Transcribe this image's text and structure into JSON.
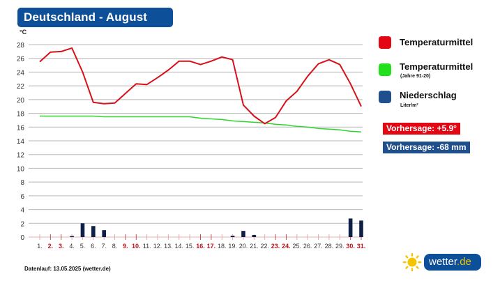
{
  "header": {
    "title": "Deutschland - August"
  },
  "axis": {
    "y_unit": "°C"
  },
  "legend": {
    "items": [
      {
        "label": "Temperaturmittel",
        "sub": "",
        "color": "#e30613"
      },
      {
        "label": "Temperaturmittel",
        "sub": "(Jahre 91-20)",
        "color": "#22e01e"
      },
      {
        "label": "Niederschlag",
        "sub": "Liter/m²",
        "color": "#1f4f8c"
      }
    ]
  },
  "forecast": {
    "temperature": {
      "label": "Vorhersage: +5.9°",
      "color": "#e30613"
    },
    "precipitation": {
      "label": "Vorhersage: -68 mm",
      "color": "#1f4f8c"
    }
  },
  "footer": {
    "text": "Datenlauf: 13.05.2025 (wetter.de)"
  },
  "logo": {
    "main": "wetter",
    "tld": ".de"
  },
  "chart_data": {
    "type": "line",
    "title": "Deutschland - August",
    "xlabel": "",
    "ylabel": "°C",
    "ylim": [
      0,
      28
    ],
    "yticks": [
      0,
      2,
      4,
      6,
      8,
      10,
      12,
      14,
      16,
      18,
      20,
      22,
      24,
      26,
      28
    ],
    "grid": true,
    "legend_position": "right",
    "categories": [
      "1.",
      "2.",
      "3.",
      "4.",
      "5.",
      "6.",
      "7.",
      "8.",
      "9.",
      "10.",
      "11.",
      "12.",
      "13.",
      "14.",
      "15.",
      "16.",
      "17.",
      "18.",
      "19.",
      "20.",
      "21.",
      "22.",
      "23.",
      "24.",
      "25.",
      "26.",
      "27.",
      "28.",
      "29.",
      "30.",
      "31."
    ],
    "weekend_days": [
      "2.",
      "3.",
      "9.",
      "10.",
      "16.",
      "17.",
      "23.",
      "24.",
      "30.",
      "31."
    ],
    "series": [
      {
        "name": "Temperaturmittel",
        "type": "line",
        "color": "#d7101a",
        "values": [
          25.5,
          26.9,
          27.0,
          27.5,
          24.0,
          19.6,
          19.4,
          19.5,
          20.9,
          22.3,
          22.2,
          23.2,
          24.3,
          25.6,
          25.6,
          25.1,
          25.6,
          26.2,
          25.8,
          19.2,
          17.6,
          16.5,
          17.4,
          19.8,
          21.2,
          23.4,
          25.2,
          25.8,
          25.1,
          22.3,
          19.0
        ]
      },
      {
        "name": "Temperaturmittel (Jahre 91-20)",
        "type": "line",
        "color": "#2fd62a",
        "values": [
          17.6,
          17.6,
          17.6,
          17.6,
          17.6,
          17.6,
          17.5,
          17.5,
          17.5,
          17.5,
          17.5,
          17.5,
          17.5,
          17.5,
          17.5,
          17.3,
          17.2,
          17.1,
          16.9,
          16.8,
          16.7,
          16.6,
          16.4,
          16.3,
          16.1,
          16.0,
          15.8,
          15.7,
          15.6,
          15.4,
          15.3
        ]
      },
      {
        "name": "Niederschlag",
        "type": "bar",
        "color": "#0f1f45",
        "unit": "Liter/m²",
        "values": [
          0,
          0,
          0,
          0.1,
          2.0,
          1.6,
          1.0,
          0,
          0,
          0,
          0,
          0,
          0,
          0,
          0,
          0,
          0,
          0,
          0.2,
          0.9,
          0.3,
          0,
          0,
          0,
          0,
          0,
          0,
          0,
          0,
          2.7,
          2.4
        ]
      }
    ]
  }
}
